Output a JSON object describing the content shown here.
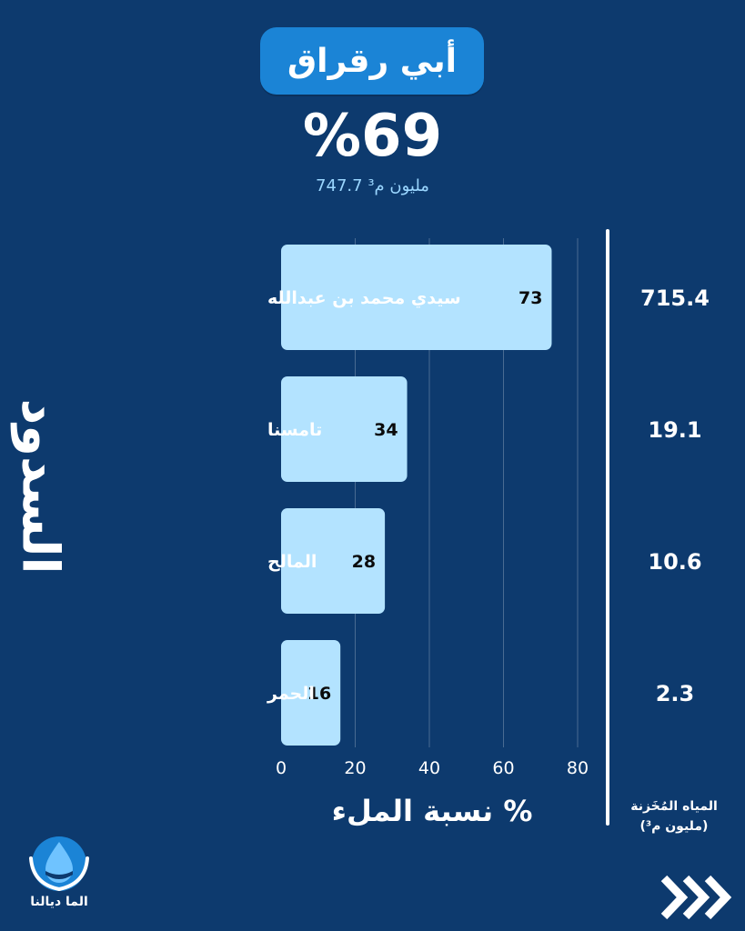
{
  "header": {
    "title": "أبي رقراق",
    "fill_percent": "%69",
    "stored_volume": "747.7 مليون م³"
  },
  "side_title": "السدود",
  "x_axis_label": "نسبة الملء %",
  "stored_column_label_line1": "المياه المُخَزنة",
  "stored_column_label_line2": "(مليون م³)",
  "logo_text": "الما ديالنا",
  "icons": {
    "logo": "water-drop-hands-icon",
    "next": "chevrons-right-icon"
  },
  "colors": {
    "background": "#0d3a6e",
    "title_pill": "#1b84d6",
    "bar": "#b3e3ff"
  },
  "chart_data": {
    "type": "bar",
    "orientation": "horizontal",
    "categories": [
      "سيدي محمد بن عبدالله",
      "تامسنا",
      "المالح",
      "الحمر"
    ],
    "values": [
      73,
      34,
      28,
      16
    ],
    "stored_million_m3": [
      "715.4",
      "19.1",
      "10.6",
      "2.3"
    ],
    "xlim": [
      0,
      80
    ],
    "xticks": [
      0,
      20,
      40,
      60,
      80
    ],
    "xlabel": "نسبة الملء %",
    "grid": true,
    "value_labels": "inside-bar-end"
  }
}
